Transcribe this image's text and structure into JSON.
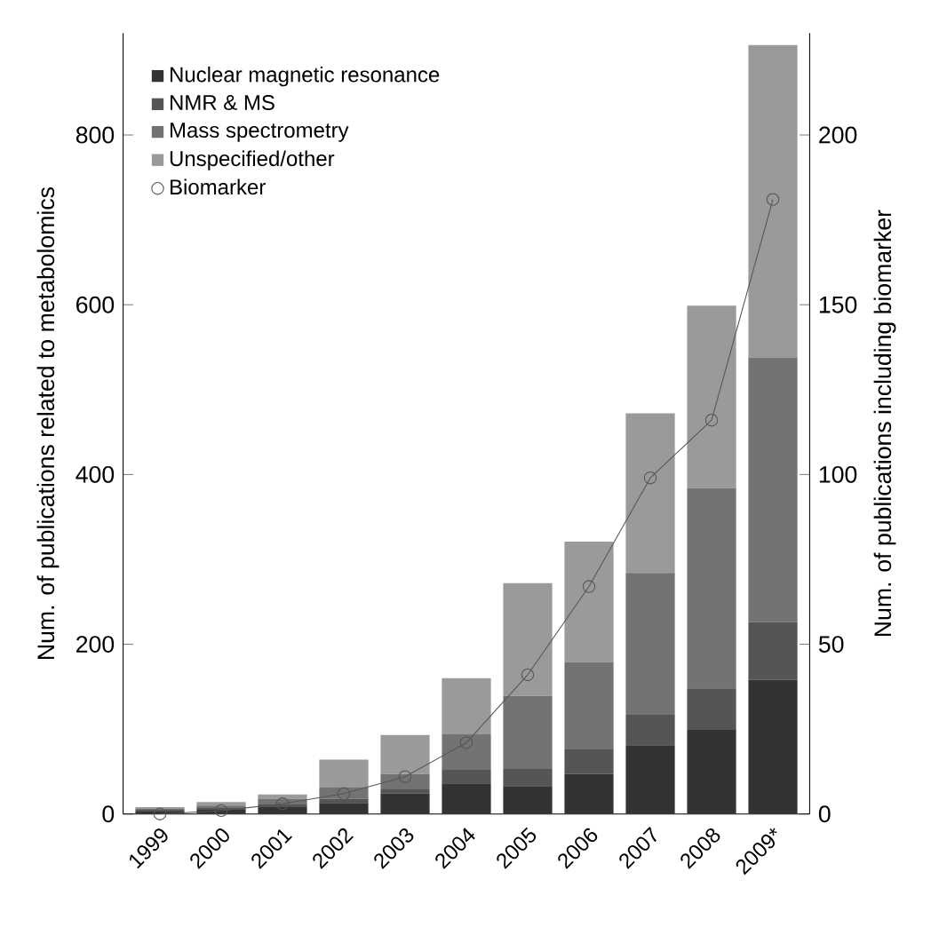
{
  "chart_data": {
    "type": "bar",
    "stacked": true,
    "categories": [
      "1999",
      "2000",
      "2001",
      "2002",
      "2003",
      "2004",
      "2005",
      "2006",
      "2007",
      "2008",
      "2009*"
    ],
    "series": [
      {
        "name": "Nuclear magnetic resonance",
        "color": "#333333",
        "values": [
          3,
          5,
          8,
          13,
          24,
          36,
          33,
          47,
          81,
          99,
          158
        ]
      },
      {
        "name": "NMR & MS",
        "color": "#555555",
        "values": [
          2,
          2,
          4,
          5,
          5,
          16,
          20,
          29,
          36,
          49,
          68
        ]
      },
      {
        "name": "Mass spectrometry",
        "color": "#737373",
        "values": [
          1,
          3,
          6,
          13,
          18,
          42,
          86,
          103,
          167,
          236,
          312
        ]
      },
      {
        "name": "Unspecified/other",
        "color": "#9a9a9a",
        "values": [
          2,
          4,
          5,
          33,
          46,
          66,
          133,
          142,
          188,
          215,
          368
        ]
      },
      {
        "name": "Biomarker",
        "type": "line",
        "axis": "y2",
        "color": "#555555",
        "marker": "circle",
        "line_style": "solid",
        "values": [
          0,
          1,
          3,
          6,
          11,
          21,
          41,
          67,
          99,
          116,
          181
        ]
      }
    ],
    "ylabel": "Num. of publications related to metabolomics",
    "y2label": "Num. of publications including biomarker",
    "ylim": [
      0,
      920
    ],
    "yticks": [
      0,
      200,
      400,
      600,
      800
    ],
    "y2lim": [
      0,
      230
    ],
    "y2ticks": [
      0,
      50,
      100,
      150,
      200
    ],
    "legend": "top left",
    "grid": false
  }
}
